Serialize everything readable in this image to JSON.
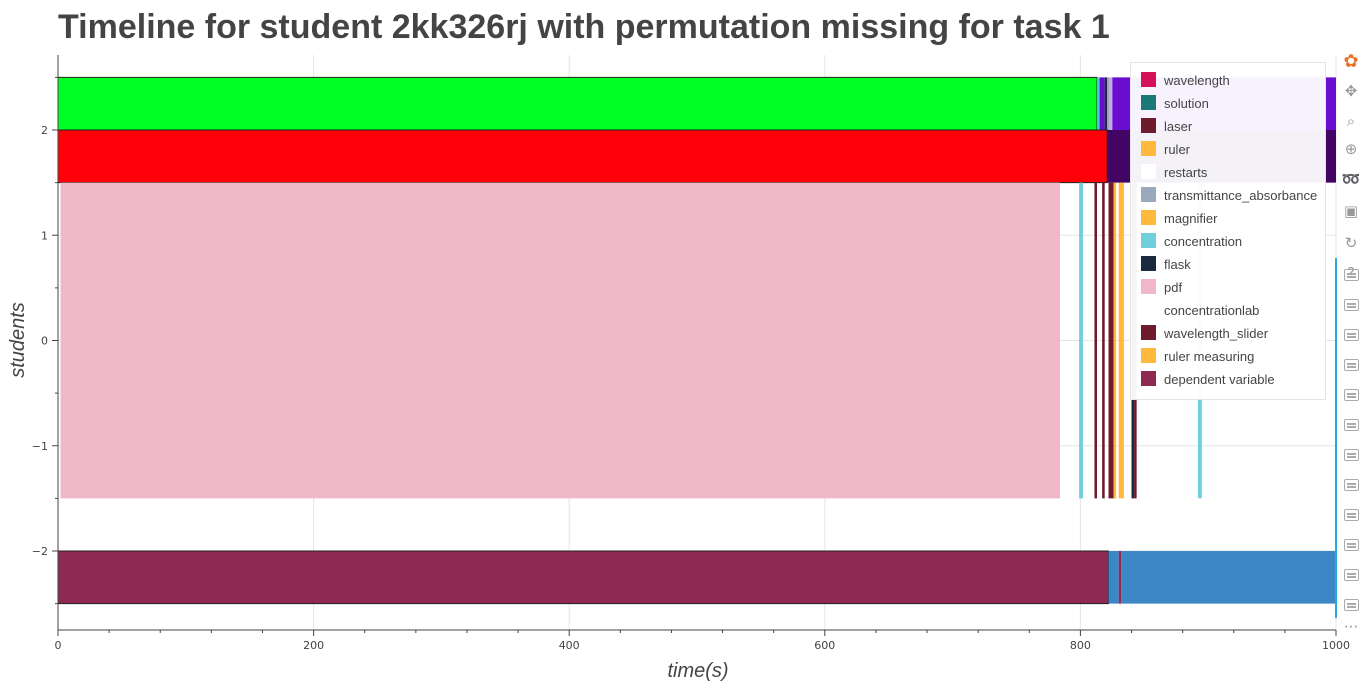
{
  "title": "Timeline for student 2kk326rj with permutation missing for task 1",
  "chart_data": {
    "type": "bar",
    "orientation": "horizontal",
    "title": "Timeline for student 2kk326rj with permutation missing for task 1",
    "xlabel": "time(s)",
    "ylabel": "students",
    "xlim": [
      0,
      1000
    ],
    "ylim": [
      -2.7,
      2.6
    ],
    "x_ticks": [
      0,
      200,
      400,
      600,
      800,
      1000
    ],
    "y_ticks": [
      -2,
      -1,
      0,
      1,
      2
    ],
    "x_tick_labels": [
      "0",
      "200",
      "400",
      "600",
      "800",
      "1000"
    ],
    "y_tick_labels": [
      "−2",
      "−1",
      "0",
      "1",
      "2"
    ],
    "grid": true,
    "legend_position": "top-right",
    "legend": [
      {
        "label": "wavelength",
        "color": "#d41159"
      },
      {
        "label": "solution",
        "color": "#1a7a78"
      },
      {
        "label": "laser",
        "color": "#6e1b2e"
      },
      {
        "label": "ruler",
        "color": "#ffb93d"
      },
      {
        "label": "restarts",
        "color": "#ffffff"
      },
      {
        "label": "transmittance_absorbance",
        "color": "#9aa9bc"
      },
      {
        "label": "magnifier",
        "color": "#ffb93d"
      },
      {
        "label": "concentration",
        "color": "#6fd0db"
      },
      {
        "label": "flask",
        "color": "#1b2a40"
      },
      {
        "label": "pdf",
        "color": "#f0b7c9"
      },
      {
        "label": "concentrationlab",
        "color": "#ffffff"
      },
      {
        "label": "wavelength_slider",
        "color": "#6e1b2e"
      },
      {
        "label": "ruler measuring",
        "color": "#ffb93d"
      },
      {
        "label": "dependent variable",
        "color": "#8e2a52"
      }
    ],
    "bars": [
      {
        "y_top": 2.5,
        "y_bottom": 2.0,
        "x_start": 0,
        "x_end": 813,
        "color": "#00ff22",
        "outline": true
      },
      {
        "y_top": 2.5,
        "y_bottom": 2.0,
        "x_start": 813,
        "x_end": 815,
        "color": "#4ac8d8"
      },
      {
        "y_top": 2.5,
        "y_bottom": 2.0,
        "x_start": 815,
        "x_end": 819,
        "color": "#6a0dce"
      },
      {
        "y_top": 2.5,
        "y_bottom": 2.0,
        "x_start": 819,
        "x_end": 821,
        "color": "#1b2a40"
      },
      {
        "y_top": 2.5,
        "y_bottom": 2.0,
        "x_start": 821,
        "x_end": 823,
        "color": "#9aa9bc"
      },
      {
        "y_top": 2.5,
        "y_bottom": 2.0,
        "x_start": 823,
        "x_end": 825,
        "color": "#c8a8e8"
      },
      {
        "y_top": 2.5,
        "y_bottom": 2.0,
        "x_start": 825,
        "x_end": 1000,
        "color": "#6a0dce"
      },
      {
        "y_top": 2.0,
        "y_bottom": 1.5,
        "x_start": 0,
        "x_end": 821,
        "color": "#ff0008",
        "outline": true
      },
      {
        "y_top": 2.0,
        "y_bottom": 1.5,
        "x_start": 821,
        "x_end": 1000,
        "color": "#430563"
      },
      {
        "y_top": 1.5,
        "y_bottom": -1.5,
        "x_start": 2,
        "x_end": 784,
        "color": "#f0b7c9"
      },
      {
        "y_top": 1.5,
        "y_bottom": -1.5,
        "x_start": 799,
        "x_end": 802,
        "color": "#6fd0db"
      },
      {
        "y_top": 1.5,
        "y_bottom": -1.5,
        "x_start": 811,
        "x_end": 813,
        "color": "#6e1b2e"
      },
      {
        "y_top": 1.5,
        "y_bottom": -1.5,
        "x_start": 817,
        "x_end": 819,
        "color": "#6e1b2e"
      },
      {
        "y_top": 1.5,
        "y_bottom": -1.5,
        "x_start": 822,
        "x_end": 826,
        "color": "#6e1b2e"
      },
      {
        "y_top": 1.5,
        "y_bottom": -1.5,
        "x_start": 826,
        "x_end": 828,
        "color": "#ffb93d"
      },
      {
        "y_top": 1.5,
        "y_bottom": -1.5,
        "x_start": 830,
        "x_end": 834,
        "color": "#ffb93d"
      },
      {
        "y_top": 1.5,
        "y_bottom": -1.5,
        "x_start": 840,
        "x_end": 842,
        "color": "#1b2a40"
      },
      {
        "y_top": 1.5,
        "y_bottom": -1.5,
        "x_start": 842,
        "x_end": 844,
        "color": "#6e1b2e"
      },
      {
        "y_top": 1.5,
        "y_bottom": -1.5,
        "x_start": 892,
        "x_end": 895,
        "color": "#6fd0db"
      },
      {
        "y_top": -2.0,
        "y_bottom": -2.5,
        "x_start": 0,
        "x_end": 822,
        "color": "#8e2a52",
        "outline": true
      },
      {
        "y_top": -2.0,
        "y_bottom": -2.5,
        "x_start": 822,
        "x_end": 830,
        "color": "#3d87c6"
      },
      {
        "y_top": -2.0,
        "y_bottom": -2.5,
        "x_start": 830,
        "x_end": 832,
        "color": "#8e2a52"
      },
      {
        "y_top": -2.0,
        "y_bottom": -2.5,
        "x_start": 832,
        "x_end": 1000,
        "color": "#3d87c6"
      }
    ]
  },
  "toolbar": {
    "icons": [
      "bokeh-logo-icon",
      "pan-icon",
      "box-zoom-icon",
      "wheel-zoom-icon",
      "lasso-icon",
      "save-icon",
      "reset-icon",
      "help-icon",
      "hover-icon",
      "more-icon"
    ],
    "more_label": "···"
  }
}
